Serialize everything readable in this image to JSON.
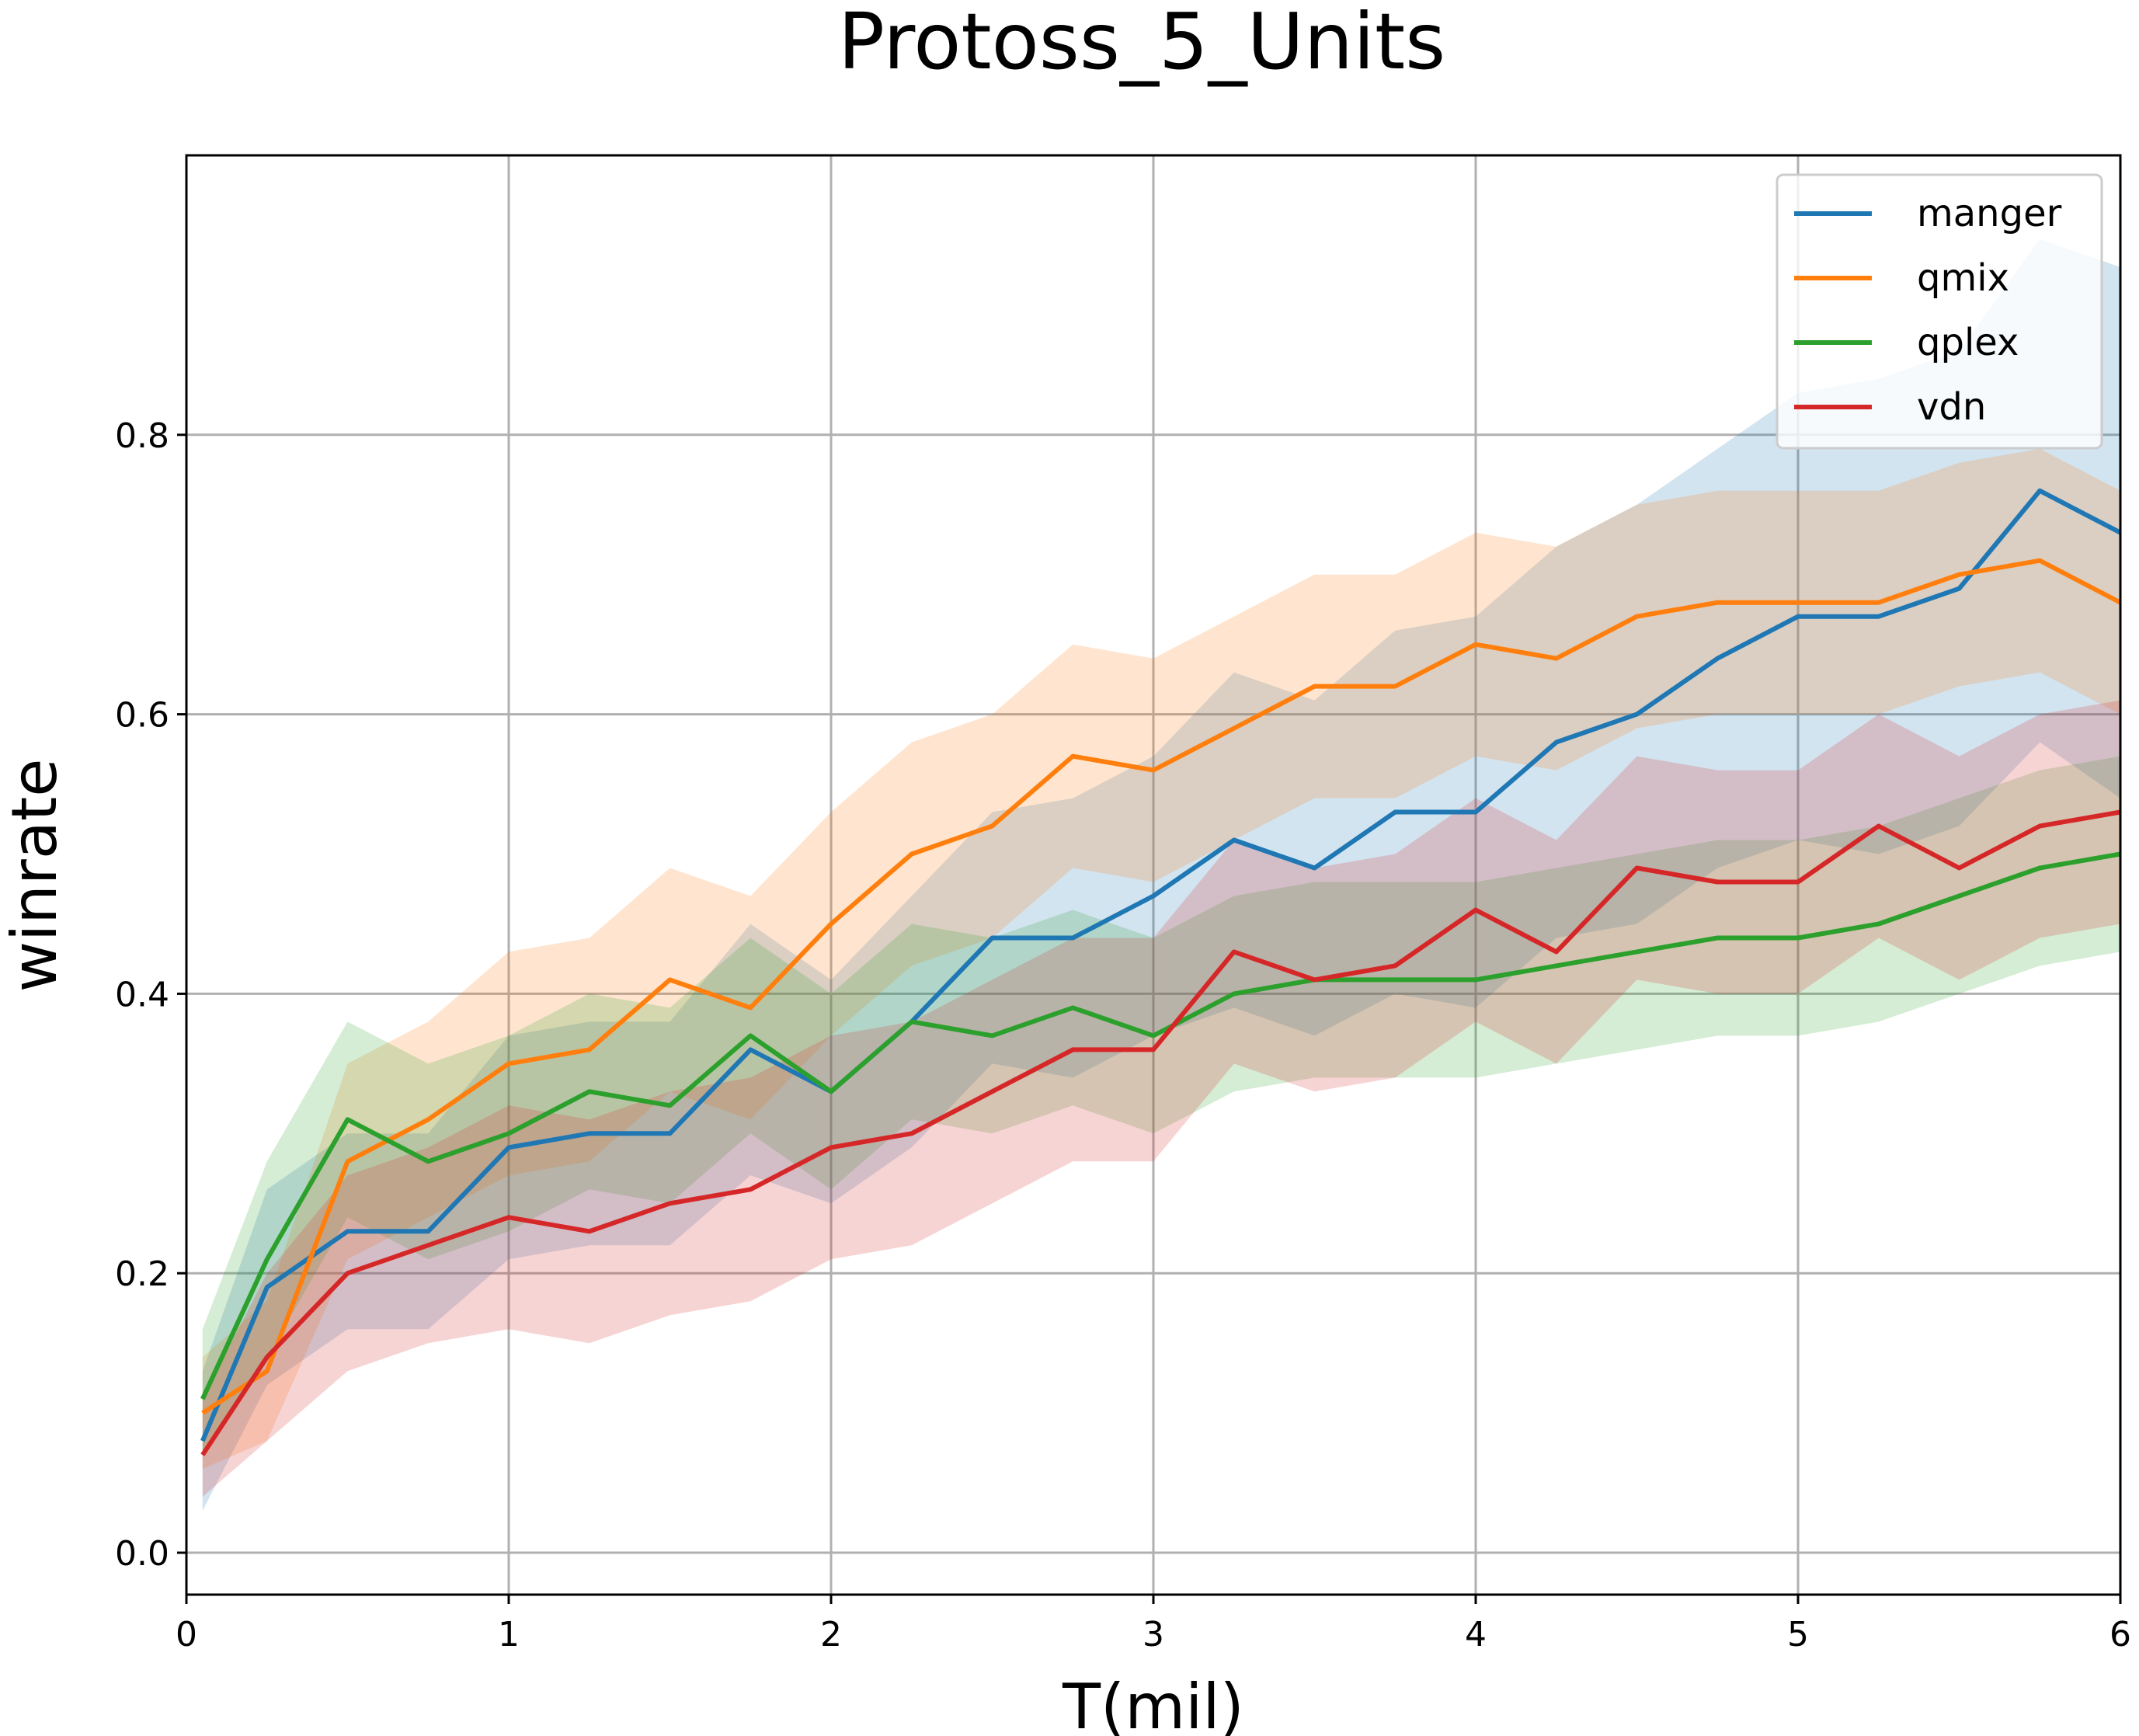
{
  "chart_data": {
    "type": "line",
    "title": "Protoss_5_Units",
    "xlabel": "T(mil)",
    "ylabel": "winrate",
    "xlim": [
      0,
      6
    ],
    "ylim": [
      -0.03,
      1.0
    ],
    "xticks": [
      0,
      1,
      2,
      3,
      4,
      5,
      6
    ],
    "xtick_labels": [
      "0",
      "1",
      "2",
      "3",
      "4",
      "5",
      "6"
    ],
    "yticks": [
      0.0,
      0.2,
      0.4,
      0.6,
      0.8
    ],
    "ytick_labels": [
      "0.0",
      "0.2",
      "0.4",
      "0.6",
      "0.8"
    ],
    "grid": true,
    "legend_position": "top-right",
    "shaded_band": "spread around each series",
    "x": [
      0.05,
      0.25,
      0.5,
      0.75,
      1.0,
      1.25,
      1.5,
      1.75,
      2.0,
      2.25,
      2.5,
      2.75,
      3.0,
      3.25,
      3.5,
      3.75,
      4.0,
      4.25,
      4.5,
      4.75,
      5.0,
      5.25,
      5.5,
      5.75,
      6.0
    ],
    "series": [
      {
        "name": "manger",
        "color": "#1f77b4",
        "values": [
          0.08,
          0.19,
          0.23,
          0.23,
          0.29,
          0.3,
          0.3,
          0.36,
          0.33,
          0.38,
          0.44,
          0.44,
          0.47,
          0.51,
          0.49,
          0.53,
          0.53,
          0.58,
          0.6,
          0.64,
          0.67,
          0.67,
          0.69,
          0.76,
          0.73
        ],
        "lower": [
          0.03,
          0.12,
          0.16,
          0.16,
          0.21,
          0.22,
          0.22,
          0.27,
          0.25,
          0.29,
          0.35,
          0.34,
          0.37,
          0.39,
          0.37,
          0.4,
          0.39,
          0.44,
          0.45,
          0.49,
          0.51,
          0.5,
          0.52,
          0.58,
          0.54
        ],
        "upper": [
          0.13,
          0.26,
          0.3,
          0.3,
          0.37,
          0.38,
          0.38,
          0.45,
          0.41,
          0.47,
          0.53,
          0.54,
          0.57,
          0.63,
          0.61,
          0.66,
          0.67,
          0.72,
          0.75,
          0.79,
          0.83,
          0.84,
          0.86,
          0.94,
          0.92
        ]
      },
      {
        "name": "qmix",
        "color": "#ff7f0e",
        "values": [
          0.1,
          0.13,
          0.28,
          0.31,
          0.35,
          0.36,
          0.41,
          0.39,
          0.45,
          0.5,
          0.52,
          0.57,
          0.56,
          0.59,
          0.62,
          0.62,
          0.65,
          0.64,
          0.67,
          0.68,
          0.68,
          0.68,
          0.7,
          0.71,
          0.68
        ],
        "lower": [
          0.06,
          0.08,
          0.21,
          0.24,
          0.27,
          0.28,
          0.33,
          0.31,
          0.37,
          0.42,
          0.44,
          0.49,
          0.48,
          0.51,
          0.54,
          0.54,
          0.57,
          0.56,
          0.59,
          0.6,
          0.6,
          0.6,
          0.62,
          0.63,
          0.6
        ],
        "upper": [
          0.14,
          0.18,
          0.35,
          0.38,
          0.43,
          0.44,
          0.49,
          0.47,
          0.53,
          0.58,
          0.6,
          0.65,
          0.64,
          0.67,
          0.7,
          0.7,
          0.73,
          0.72,
          0.75,
          0.76,
          0.76,
          0.76,
          0.78,
          0.79,
          0.76
        ]
      },
      {
        "name": "qplex",
        "color": "#2ca02c",
        "values": [
          0.11,
          0.21,
          0.31,
          0.28,
          0.3,
          0.33,
          0.32,
          0.37,
          0.33,
          0.38,
          0.37,
          0.39,
          0.37,
          0.4,
          0.41,
          0.41,
          0.41,
          0.42,
          0.43,
          0.44,
          0.44,
          0.45,
          0.47,
          0.49,
          0.5
        ],
        "lower": [
          0.07,
          0.14,
          0.24,
          0.21,
          0.23,
          0.26,
          0.25,
          0.3,
          0.26,
          0.31,
          0.3,
          0.32,
          0.3,
          0.33,
          0.34,
          0.34,
          0.34,
          0.35,
          0.36,
          0.37,
          0.37,
          0.38,
          0.4,
          0.42,
          0.43
        ],
        "upper": [
          0.16,
          0.28,
          0.38,
          0.35,
          0.37,
          0.4,
          0.39,
          0.44,
          0.4,
          0.45,
          0.44,
          0.46,
          0.44,
          0.47,
          0.48,
          0.48,
          0.48,
          0.49,
          0.5,
          0.51,
          0.51,
          0.52,
          0.54,
          0.56,
          0.57
        ]
      },
      {
        "name": "vdn",
        "color": "#d62728",
        "values": [
          0.07,
          0.14,
          0.2,
          0.22,
          0.24,
          0.23,
          0.25,
          0.26,
          0.29,
          0.3,
          0.33,
          0.36,
          0.36,
          0.43,
          0.41,
          0.42,
          0.46,
          0.43,
          0.49,
          0.48,
          0.48,
          0.52,
          0.49,
          0.52,
          0.53
        ],
        "lower": [
          0.04,
          0.08,
          0.13,
          0.15,
          0.16,
          0.15,
          0.17,
          0.18,
          0.21,
          0.22,
          0.25,
          0.28,
          0.28,
          0.35,
          0.33,
          0.34,
          0.38,
          0.35,
          0.41,
          0.4,
          0.4,
          0.44,
          0.41,
          0.44,
          0.45
        ],
        "upper": [
          0.11,
          0.2,
          0.27,
          0.29,
          0.32,
          0.31,
          0.33,
          0.34,
          0.37,
          0.38,
          0.41,
          0.44,
          0.44,
          0.51,
          0.49,
          0.5,
          0.54,
          0.51,
          0.57,
          0.56,
          0.56,
          0.6,
          0.57,
          0.6,
          0.61
        ]
      }
    ]
  }
}
